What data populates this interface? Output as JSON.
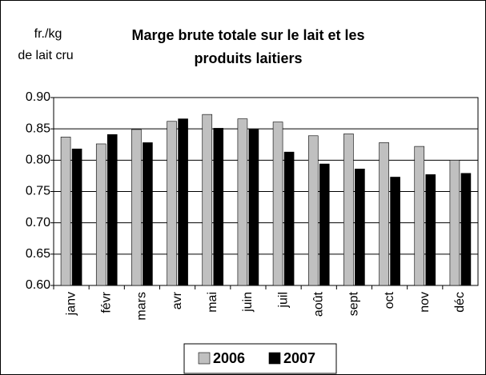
{
  "chart_data": {
    "type": "bar",
    "title": [
      "Marge brute totale sur le lait et les",
      "produits laitiers"
    ],
    "ylabel": [
      "fr./kg",
      "de lait cru"
    ],
    "categories": [
      "janv",
      "févr",
      "mars",
      "avr",
      "mai",
      "juin",
      "juil",
      "août",
      "sept",
      "oct",
      "nov",
      "déc"
    ],
    "series": [
      {
        "name": "2006",
        "color": "#c0c0c0",
        "values": [
          0.837,
          0.826,
          0.849,
          0.862,
          0.873,
          0.866,
          0.861,
          0.839,
          0.842,
          0.828,
          0.822,
          0.8
        ]
      },
      {
        "name": "2007",
        "color": "#000000",
        "values": [
          0.818,
          0.841,
          0.828,
          0.866,
          0.851,
          0.849,
          0.813,
          0.794,
          0.786,
          0.773,
          0.777,
          0.779
        ]
      }
    ],
    "ylim": [
      0.6,
      0.9
    ],
    "yticks": [
      {
        "value": 0.6,
        "label": "0.60"
      },
      {
        "value": 0.65,
        "label": "0.65"
      },
      {
        "value": 0.7,
        "label": "0.70"
      },
      {
        "value": 0.75,
        "label": "0.75"
      },
      {
        "value": 0.8,
        "label": "0.80"
      },
      {
        "value": 0.85,
        "label": "0.85"
      },
      {
        "value": 0.9,
        "label": "0.90"
      }
    ],
    "grid": true,
    "legend": "bottom"
  }
}
